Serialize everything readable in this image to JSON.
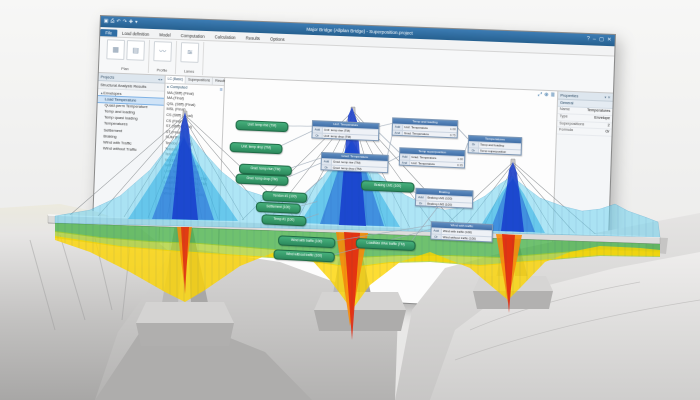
{
  "window": {
    "title": "Major Bridge (Allplan Bridge) - Superposition.project",
    "quick_access_icons": [
      "app-icon",
      "save-icon",
      "undo-icon",
      "redo-icon",
      "print-icon",
      "help-icon"
    ],
    "window_buttons": [
      "?",
      "–",
      "▢",
      "✕"
    ],
    "ribbon_tabs": [
      "File",
      "Load definition",
      "Model",
      "Computation",
      "Calculation",
      "Results",
      "Options"
    ],
    "ribbon_groups": [
      {
        "caption": "Plan"
      },
      {
        "caption": "Profile"
      },
      {
        "caption": "Lanes"
      }
    ],
    "left_panel": {
      "strip": "Projects",
      "caption": "Structural Analysis Results",
      "tree": [
        {
          "label": "Envelopes",
          "level": 0,
          "twisty": "▲",
          "selected": false
        },
        {
          "label": "Load Temperature",
          "level": 1,
          "twisty": "",
          "selected": true
        },
        {
          "label": "Quasi-perm Temperature",
          "level": 1,
          "twisty": "",
          "selected": false
        },
        {
          "label": "Temp and loading",
          "level": 1,
          "twisty": "",
          "selected": false
        },
        {
          "label": "Temp quasi loading",
          "level": 1,
          "twisty": "",
          "selected": false
        },
        {
          "label": "Temperatures",
          "level": 1,
          "twisty": "",
          "selected": false
        },
        {
          "label": "Settlement",
          "level": 1,
          "twisty": "",
          "selected": false
        },
        {
          "label": "Braking",
          "level": 1,
          "twisty": "",
          "selected": false
        },
        {
          "label": "Wind with Traffic",
          "level": 1,
          "twisty": "",
          "selected": false
        },
        {
          "label": "Wind without Traffic",
          "level": 1,
          "twisty": "",
          "selected": false
        }
      ]
    },
    "list_panel": {
      "tabs": [
        {
          "label": "LC (Basic)",
          "active": true
        },
        {
          "label": "Superpositions",
          "active": false
        },
        {
          "label": "Results",
          "active": false
        }
      ],
      "root": "Computed",
      "items": [
        "MA (Stiff) (Final)",
        "MA (Final)",
        "QSL (Stiff) (Final)",
        "MSL (Final)",
        "CS (Stiff) (Final)",
        "CS (Final)",
        "ST (Stiff) (Final)",
        "ST (Final)",
        "SUM (Final)",
        "Tendon #1 (100)",
        "Tendon #2 (100)",
        "Tendon #3 (100)",
        "Tendon #4 (100)",
        "Self Temp drive (TM)",
        "Unif. temp drop (100)",
        "LoadMax drive lanes (TM)",
        "LoadMax drive traffic (TM)",
        "Wind with traffic (100)",
        "Wind without traffic (100)"
      ]
    },
    "view_toolbar": [
      "fit-view-icon",
      "zoom-icon",
      "layers-icon"
    ],
    "view_toolbar_glyphs": [
      "⤢",
      "⊕",
      "≣"
    ],
    "properties": {
      "header": "Properties",
      "group": "General",
      "rows": [
        {
          "key": "Name",
          "value": "Temperatures"
        },
        {
          "key": "Type",
          "value": "Envelope"
        },
        {
          "key": "Superpositions",
          "value": "2"
        },
        {
          "key": "Formula",
          "value": "Or"
        }
      ]
    },
    "canvas": {
      "pills": [
        {
          "label": "Unif. temp rise (TM)"
        },
        {
          "label": "Unif. temp drop (TM)"
        },
        {
          "label": "Grad. temp rise (TM)"
        },
        {
          "label": "Grad. temp drop (TM)"
        },
        {
          "label": "Tendon #1 (100)"
        },
        {
          "label": "Settlement (100)"
        },
        {
          "label": "Temp #1 (100)"
        },
        {
          "label": "Braking LM1 (100)"
        },
        {
          "label": "LoadMax drive traffic (TM)"
        },
        {
          "label": "Wind with traffic (100)"
        },
        {
          "label": "Wind without traffic (100)"
        }
      ],
      "tables": [
        {
          "title": "Unif. Temperature",
          "rows": [
            {
              "op": "Add",
              "ref": "Unif. temp rise (TM)",
              "factor": ""
            },
            {
              "op": "Or",
              "ref": "Unif. temp drop (TM)",
              "factor": ""
            }
          ]
        },
        {
          "title": "Grad. Temperature",
          "rows": [
            {
              "op": "Add",
              "ref": "Grad. temp rise (TM)",
              "factor": ""
            },
            {
              "op": "Or",
              "ref": "Grad. temp drop (TM)",
              "factor": ""
            }
          ]
        },
        {
          "title": "Temp and loading",
          "rows": [
            {
              "op": "Add",
              "ref": "Unif. Temperature",
              "factor": "1.00"
            },
            {
              "op": "And",
              "ref": "Grad. Temperature",
              "factor": "0.75"
            }
          ]
        },
        {
          "title": "Temp superposition",
          "rows": [
            {
              "op": "Add",
              "ref": "Grad. Temperature",
              "factor": "1.00"
            },
            {
              "op": "And",
              "ref": "Unif. Temperature",
              "factor": "0.35"
            }
          ]
        },
        {
          "title": "Temperatures",
          "rows": [
            {
              "op": "Or",
              "ref": "Temp and loading",
              "factor": ""
            },
            {
              "op": "Or",
              "ref": "Temp superposition",
              "factor": ""
            }
          ]
        },
        {
          "title": "Braking",
          "rows": [
            {
              "op": "Add",
              "ref": "Braking LM1 (100)",
              "factor": ""
            },
            {
              "op": "Or",
              "ref": "Braking LM2 (100)",
              "factor": ""
            }
          ]
        },
        {
          "title": "Wind with traffic",
          "rows": [
            {
              "op": "Add",
              "ref": "Wind with traffic (100)",
              "factor": ""
            },
            {
              "op": "Or",
              "ref": "Wind without traffic (100)",
              "factor": ""
            }
          ]
        }
      ]
    }
  },
  "scene": {
    "description": "3D canyon terrain with three-pylon cable-stayed bridge showing result envelopes",
    "colors": {
      "title_bar": "#2e6da4",
      "envelope_dark_blue": "#163ccd",
      "envelope_blue": "#2a6ed7",
      "envelope_cyan": "#2dafe4",
      "envelope_light_cyan": "#6ed2ee",
      "envelope_green": "#46af46",
      "envelope_yellow_green": "#aacd28",
      "envelope_yellow": "#fcd400",
      "envelope_orange": "#f88c0a",
      "envelope_red": "#e12d12",
      "terrain": "#d6d5d4",
      "deck": "#dcdcdb"
    }
  }
}
